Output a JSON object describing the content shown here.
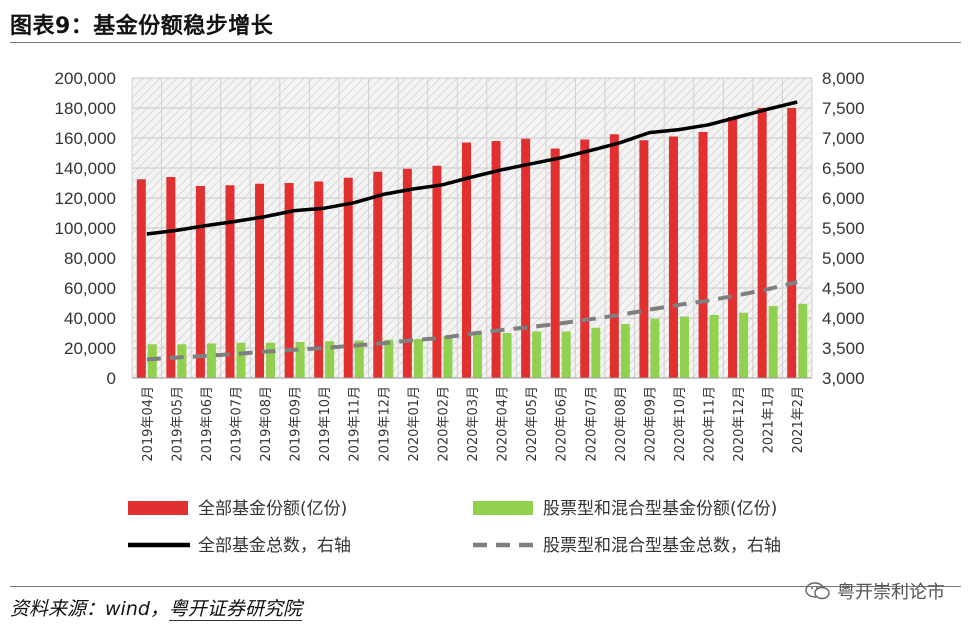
{
  "header": {
    "title": "图表9：基金份额稳步增长"
  },
  "footer": {
    "source_prefix": "资料来源：wind，",
    "source_org": "粤开证券研究院",
    "watermark": "粤开崇利论市"
  },
  "chart_data": {
    "type": "bar",
    "categories": [
      "2019年04月",
      "2019年05月",
      "2019年06月",
      "2019年07月",
      "2019年08月",
      "2019年09月",
      "2019年10月",
      "2019年11月",
      "2019年12月",
      "2020年01月",
      "2020年02月",
      "2020年03月",
      "2020年04月",
      "2020年05月",
      "2020年06月",
      "2020年07月",
      "2020年08月",
      "2020年09月",
      "2020年10月",
      "2020年11月",
      "2020年12月",
      "2021年1月",
      "2021年2月"
    ],
    "series": [
      {
        "name": "全部基金份额(亿份)",
        "type": "bar",
        "axis": "left",
        "color": "#e03030",
        "values": [
          132500,
          134000,
          128000,
          128500,
          129500,
          130000,
          131000,
          133500,
          137500,
          139500,
          141500,
          157000,
          158000,
          159500,
          153000,
          159000,
          162500,
          158500,
          161000,
          164000,
          174000,
          180000,
          180000
        ]
      },
      {
        "name": "股票型和混合型基金份额(亿份)",
        "type": "bar",
        "axis": "left",
        "color": "#92d050",
        "values": [
          22500,
          22500,
          23000,
          23500,
          23500,
          24000,
          24500,
          25000,
          25500,
          26000,
          28000,
          29500,
          30000,
          31000,
          31000,
          33500,
          36000,
          39500,
          41000,
          42000,
          43500,
          48000,
          49500
        ]
      },
      {
        "name": "全部基金总数，右轴",
        "type": "line",
        "axis": "right",
        "color": "#000000",
        "style": "solid",
        "values": [
          5400,
          5460,
          5540,
          5610,
          5690,
          5790,
          5830,
          5920,
          6060,
          6150,
          6220,
          6350,
          6470,
          6570,
          6670,
          6790,
          6920,
          7090,
          7140,
          7220,
          7350,
          7480,
          7600
        ]
      },
      {
        "name": "股票型和混合型基金总数，右轴",
        "type": "line",
        "axis": "right",
        "color": "#7f7f7f",
        "style": "dashed",
        "values": [
          3310,
          3340,
          3370,
          3400,
          3440,
          3470,
          3500,
          3540,
          3580,
          3630,
          3670,
          3740,
          3800,
          3850,
          3910,
          3980,
          4050,
          4140,
          4220,
          4290,
          4380,
          4480,
          4600
        ]
      }
    ],
    "left_axis": {
      "ylim": [
        0,
        200000
      ],
      "ticks": [
        "0",
        "20,000",
        "40,000",
        "60,000",
        "80,000",
        "100,000",
        "120,000",
        "140,000",
        "160,000",
        "180,000",
        "200,000"
      ]
    },
    "right_axis": {
      "ylim": [
        3000,
        8000
      ],
      "ticks": [
        "3,000",
        "3,500",
        "4,000",
        "4,500",
        "5,000",
        "5,500",
        "6,000",
        "6,500",
        "7,000",
        "7,500",
        "8,000"
      ]
    },
    "grid": true,
    "legend_position": "bottom"
  }
}
